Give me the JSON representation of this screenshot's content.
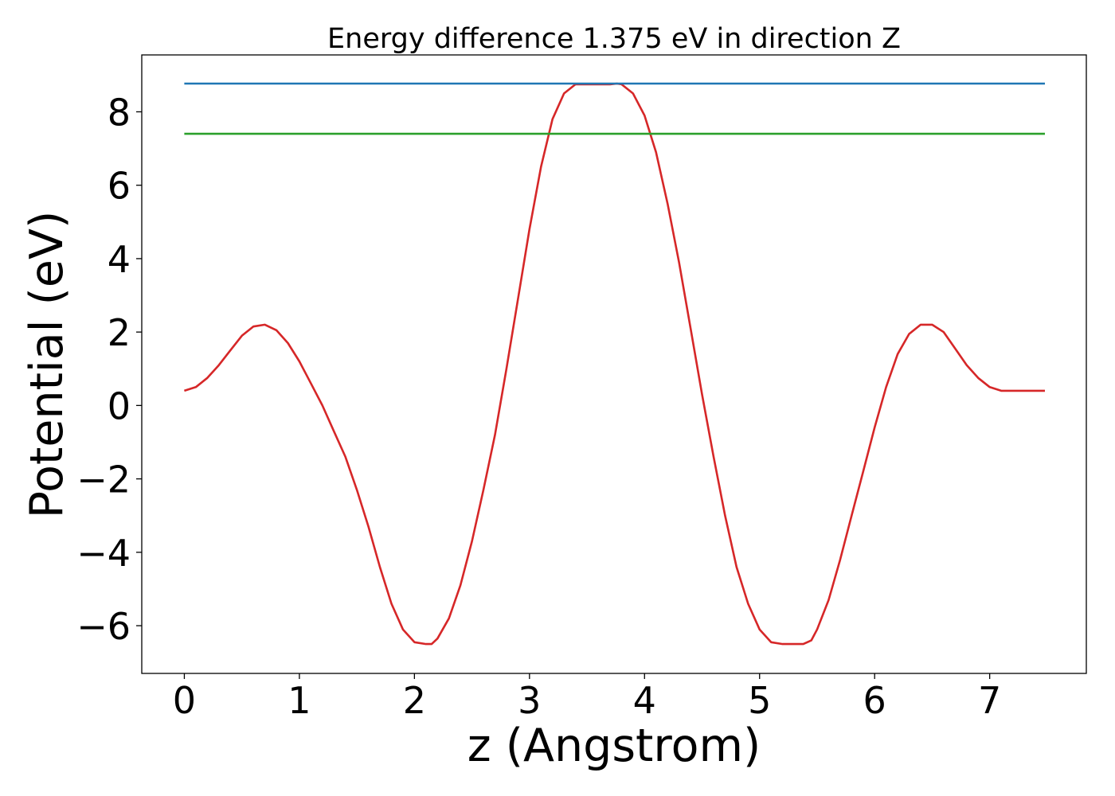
{
  "chart_data": {
    "type": "line",
    "title": "Energy difference 1.375 eV in direction Z",
    "xlabel": "z (Angstrom)",
    "ylabel": "Potential (eV)",
    "xlim": [
      -0.37,
      7.84
    ],
    "ylim": [
      -7.3,
      9.55
    ],
    "xticks": [
      0,
      1,
      2,
      3,
      4,
      5,
      6,
      7
    ],
    "xtick_labels": [
      "0",
      "1",
      "2",
      "3",
      "4",
      "5",
      "6",
      "7"
    ],
    "yticks": [
      -6,
      -4,
      -2,
      0,
      2,
      4,
      6,
      8
    ],
    "ytick_labels": [
      "−6",
      "−4",
      "−2",
      "0",
      "2",
      "4",
      "6",
      "8"
    ],
    "grid": false,
    "legend": "none",
    "series": [
      {
        "color": "#d62728",
        "x": [
          0.0,
          0.1,
          0.2,
          0.3,
          0.4,
          0.5,
          0.6,
          0.7,
          0.8,
          0.9,
          1.0,
          1.1,
          1.2,
          1.3,
          1.4,
          1.5,
          1.6,
          1.7,
          1.8,
          1.9,
          2.0,
          2.1,
          2.15,
          2.2,
          2.3,
          2.4,
          2.5,
          2.6,
          2.7,
          2.8,
          2.9,
          3.0,
          3.1,
          3.2,
          3.3,
          3.4,
          3.5,
          3.6,
          3.7,
          3.76,
          3.8,
          3.9,
          4.0,
          4.1,
          4.2,
          4.3,
          4.4,
          4.5,
          4.6,
          4.7,
          4.8,
          4.9,
          5.0,
          5.1,
          5.2,
          5.3,
          5.38,
          5.45,
          5.5,
          5.6,
          5.7,
          5.8,
          5.9,
          6.0,
          6.1,
          6.2,
          6.3,
          6.4,
          6.5,
          6.6,
          6.7,
          6.8,
          6.9,
          7.0,
          7.1,
          7.2,
          7.3,
          7.4,
          7.48
        ],
        "y": [
          0.4,
          0.5,
          0.75,
          1.1,
          1.5,
          1.9,
          2.15,
          2.2,
          2.05,
          1.7,
          1.2,
          0.6,
          0.0,
          -0.7,
          -1.4,
          -2.3,
          -3.3,
          -4.4,
          -5.4,
          -6.1,
          -6.45,
          -6.5,
          -6.5,
          -6.35,
          -5.8,
          -4.9,
          -3.7,
          -2.3,
          -0.8,
          1.0,
          2.9,
          4.8,
          6.5,
          7.8,
          8.5,
          8.75,
          8.75,
          8.75,
          8.75,
          8.77,
          8.75,
          8.5,
          7.9,
          6.9,
          5.5,
          3.9,
          2.1,
          0.3,
          -1.4,
          -3.0,
          -4.4,
          -5.4,
          -6.1,
          -6.45,
          -6.5,
          -6.5,
          -6.5,
          -6.4,
          -6.1,
          -5.3,
          -4.2,
          -3.0,
          -1.8,
          -0.6,
          0.5,
          1.4,
          1.95,
          2.2,
          2.2,
          2.0,
          1.55,
          1.1,
          0.75,
          0.5,
          0.4,
          0.4,
          0.4,
          0.4,
          0.4
        ]
      },
      {
        "color": "#1f77b4",
        "x": [
          0.0,
          7.48
        ],
        "y": [
          8.77,
          8.77
        ]
      },
      {
        "color": "#2ca02c",
        "x": [
          0.0,
          7.48
        ],
        "y": [
          7.4,
          7.4
        ]
      }
    ]
  }
}
